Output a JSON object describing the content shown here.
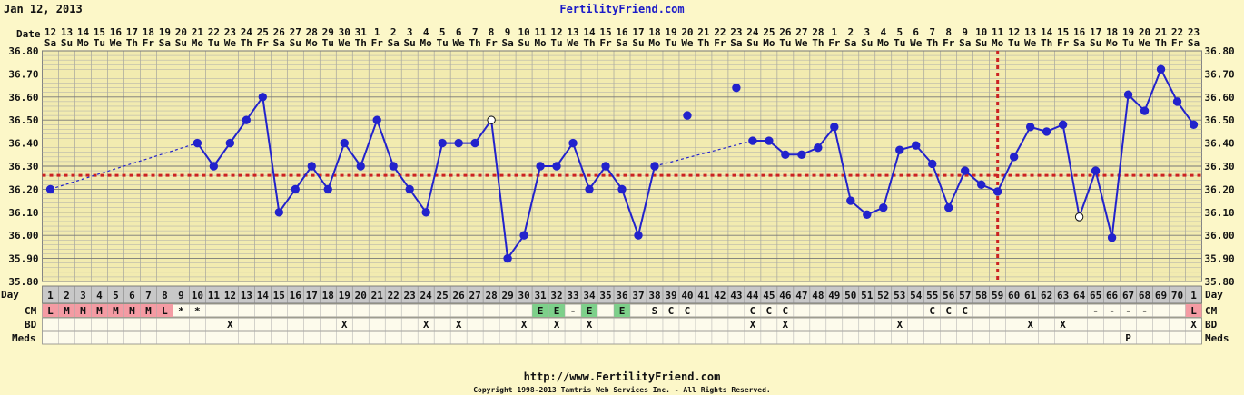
{
  "header": {
    "date": "Jan 12, 2013",
    "site": "FertilityFriend.com"
  },
  "footer": {
    "url": "http://www.FertilityFriend.com",
    "copyright": "Copyright 1998-2013 Tamtris Web Services Inc. - All Rights Reserved."
  },
  "labels": {
    "date": "Date",
    "day": "Day",
    "cm": "CM",
    "bd": "BD",
    "meds": "Meds"
  },
  "colors": {
    "line": "#2222CC",
    "coverline": "#CC2222",
    "cm_period": "#F49BA3",
    "cm_egg": "#7DD08A",
    "grid": "#999999"
  },
  "chart_data": {
    "type": "line",
    "ylim": [
      35.8,
      36.8
    ],
    "y_ticks": [
      "36.80",
      "36.70",
      "36.60",
      "36.50",
      "36.40",
      "36.30",
      "36.20",
      "36.10",
      "36.00",
      "35.90",
      "35.80"
    ],
    "dates": [
      "12",
      "13",
      "14",
      "15",
      "16",
      "17",
      "18",
      "19",
      "20",
      "21",
      "22",
      "23",
      "24",
      "25",
      "26",
      "27",
      "28",
      "29",
      "30",
      "31",
      "1",
      "2",
      "3",
      "4",
      "5",
      "6",
      "7",
      "8",
      "9",
      "10",
      "11",
      "12",
      "13",
      "14",
      "15",
      "16",
      "17",
      "18",
      "19",
      "20",
      "21",
      "22",
      "23",
      "24",
      "25",
      "26",
      "27",
      "28",
      "1",
      "2",
      "3",
      "4",
      "5",
      "6",
      "7",
      "8",
      "9",
      "10",
      "11",
      "12",
      "13",
      "14",
      "15",
      "16",
      "17",
      "18",
      "19",
      "20",
      "21",
      "22",
      "23"
    ],
    "weekdays": [
      "Sa",
      "Su",
      "Mo",
      "Tu",
      "We",
      "Th",
      "Fr",
      "Sa",
      "Su",
      "Mo",
      "Tu",
      "We",
      "Th",
      "Fr",
      "Sa",
      "Su",
      "Mo",
      "Tu",
      "We",
      "Th",
      "Fr",
      "Sa",
      "Su",
      "Mo",
      "Tu",
      "We",
      "Th",
      "Fr",
      "Sa",
      "Su",
      "Mo",
      "Tu",
      "We",
      "Th",
      "Fr",
      "Sa",
      "Su",
      "Mo",
      "Tu",
      "We",
      "Th",
      "Fr",
      "Sa",
      "Su",
      "Mo",
      "Tu",
      "We",
      "Th",
      "Fr",
      "Sa",
      "Su",
      "Mo",
      "Tu",
      "We",
      "Th",
      "Fr",
      "Sa",
      "Su",
      "Mo",
      "Tu",
      "We",
      "Th",
      "Fr",
      "Sa",
      "Su",
      "Mo",
      "Tu",
      "We",
      "Th",
      "Fr",
      "Sa"
    ],
    "cycle_days": [
      "1",
      "2",
      "3",
      "4",
      "5",
      "6",
      "7",
      "8",
      "9",
      "10",
      "11",
      "12",
      "13",
      "14",
      "15",
      "16",
      "17",
      "18",
      "19",
      "20",
      "21",
      "22",
      "23",
      "24",
      "25",
      "26",
      "27",
      "28",
      "29",
      "30",
      "31",
      "32",
      "33",
      "34",
      "35",
      "36",
      "37",
      "38",
      "39",
      "40",
      "41",
      "42",
      "43",
      "44",
      "45",
      "46",
      "47",
      "48",
      "49",
      "50",
      "51",
      "52",
      "53",
      "54",
      "55",
      "56",
      "57",
      "58",
      "59",
      "60",
      "61",
      "62",
      "63",
      "64",
      "65",
      "66",
      "67",
      "68",
      "69",
      "70",
      "1"
    ],
    "temps": [
      36.2,
      null,
      null,
      null,
      null,
      null,
      null,
      null,
      null,
      36.4,
      36.3,
      36.4,
      36.5,
      36.6,
      36.1,
      36.2,
      36.3,
      36.2,
      36.4,
      36.3,
      36.5,
      36.3,
      36.2,
      36.1,
      36.4,
      36.4,
      36.4,
      36.5,
      35.9,
      36.0,
      36.3,
      36.3,
      36.4,
      36.2,
      36.3,
      36.2,
      36.0,
      36.3,
      null,
      36.52,
      null,
      null,
      36.64,
      36.41,
      36.41,
      36.35,
      36.35,
      36.38,
      36.47,
      36.15,
      36.09,
      36.12,
      36.37,
      36.39,
      36.31,
      36.12,
      36.28,
      36.22,
      36.19,
      36.34,
      36.47,
      36.45,
      36.48,
      36.08,
      36.28,
      35.99,
      36.61,
      36.54,
      36.72,
      36.58,
      36.48
    ],
    "open_points": [
      27,
      63
    ],
    "disconnected_points": [
      39,
      42
    ],
    "dashed_links": [
      [
        0,
        9
      ],
      [
        37,
        43
      ]
    ],
    "coverline": 36.26,
    "ovulation_day_index": 58,
    "cm": [
      "L",
      "M",
      "M",
      "M",
      "M",
      "M",
      "M",
      "L",
      "*",
      "*",
      "",
      "",
      "",
      "",
      "",
      "",
      "",
      "",
      "",
      "",
      "",
      "",
      "",
      "",
      "",
      "",
      "",
      "",
      "",
      "",
      "E",
      "E",
      "-",
      "E",
      "",
      "E",
      "",
      "S",
      "C",
      "C",
      "",
      "",
      "",
      "C",
      "C",
      "C",
      "",
      "",
      "",
      "",
      "",
      "",
      "",
      "",
      "C",
      "C",
      "C",
      "",
      "",
      "",
      "",
      "",
      "",
      "",
      "-",
      "-",
      "-",
      "-",
      "",
      "",
      "L"
    ],
    "cm_period_days": [
      0,
      1,
      2,
      3,
      4,
      5,
      6,
      7,
      70
    ],
    "cm_egg_days": [
      30,
      31,
      33,
      35
    ],
    "bd": [
      "",
      "",
      "",
      "",
      "",
      "",
      "",
      "",
      "",
      "",
      "",
      "X",
      "",
      "",
      "",
      "",
      "",
      "",
      "X",
      "",
      "",
      "",
      "",
      "X",
      "",
      "X",
      "",
      "",
      "",
      "X",
      "",
      "X",
      "",
      "X",
      "",
      "",
      "",
      "",
      "",
      "",
      "",
      "",
      "",
      "X",
      "",
      "X",
      "",
      "",
      "",
      "",
      "",
      "",
      "X",
      "",
      "",
      "",
      "",
      "",
      "",
      "",
      "X",
      "",
      "X",
      "",
      "",
      "",
      "",
      "",
      "",
      "",
      "X",
      ""
    ],
    "meds": [
      "",
      "",
      "",
      "",
      "",
      "",
      "",
      "",
      "",
      "",
      "",
      "",
      "",
      "",
      "",
      "",
      "",
      "",
      "",
      "",
      "",
      "",
      "",
      "",
      "",
      "",
      "",
      "",
      "",
      "",
      "",
      "",
      "",
      "",
      "",
      "",
      "",
      "",
      "",
      "",
      "",
      "",
      "",
      "",
      "",
      "",
      "",
      "",
      "",
      "",
      "",
      "",
      "",
      "",
      "",
      "",
      "",
      "",
      "",
      "",
      "",
      "",
      "",
      "",
      "",
      "",
      "P",
      "",
      "",
      "",
      ""
    ]
  }
}
